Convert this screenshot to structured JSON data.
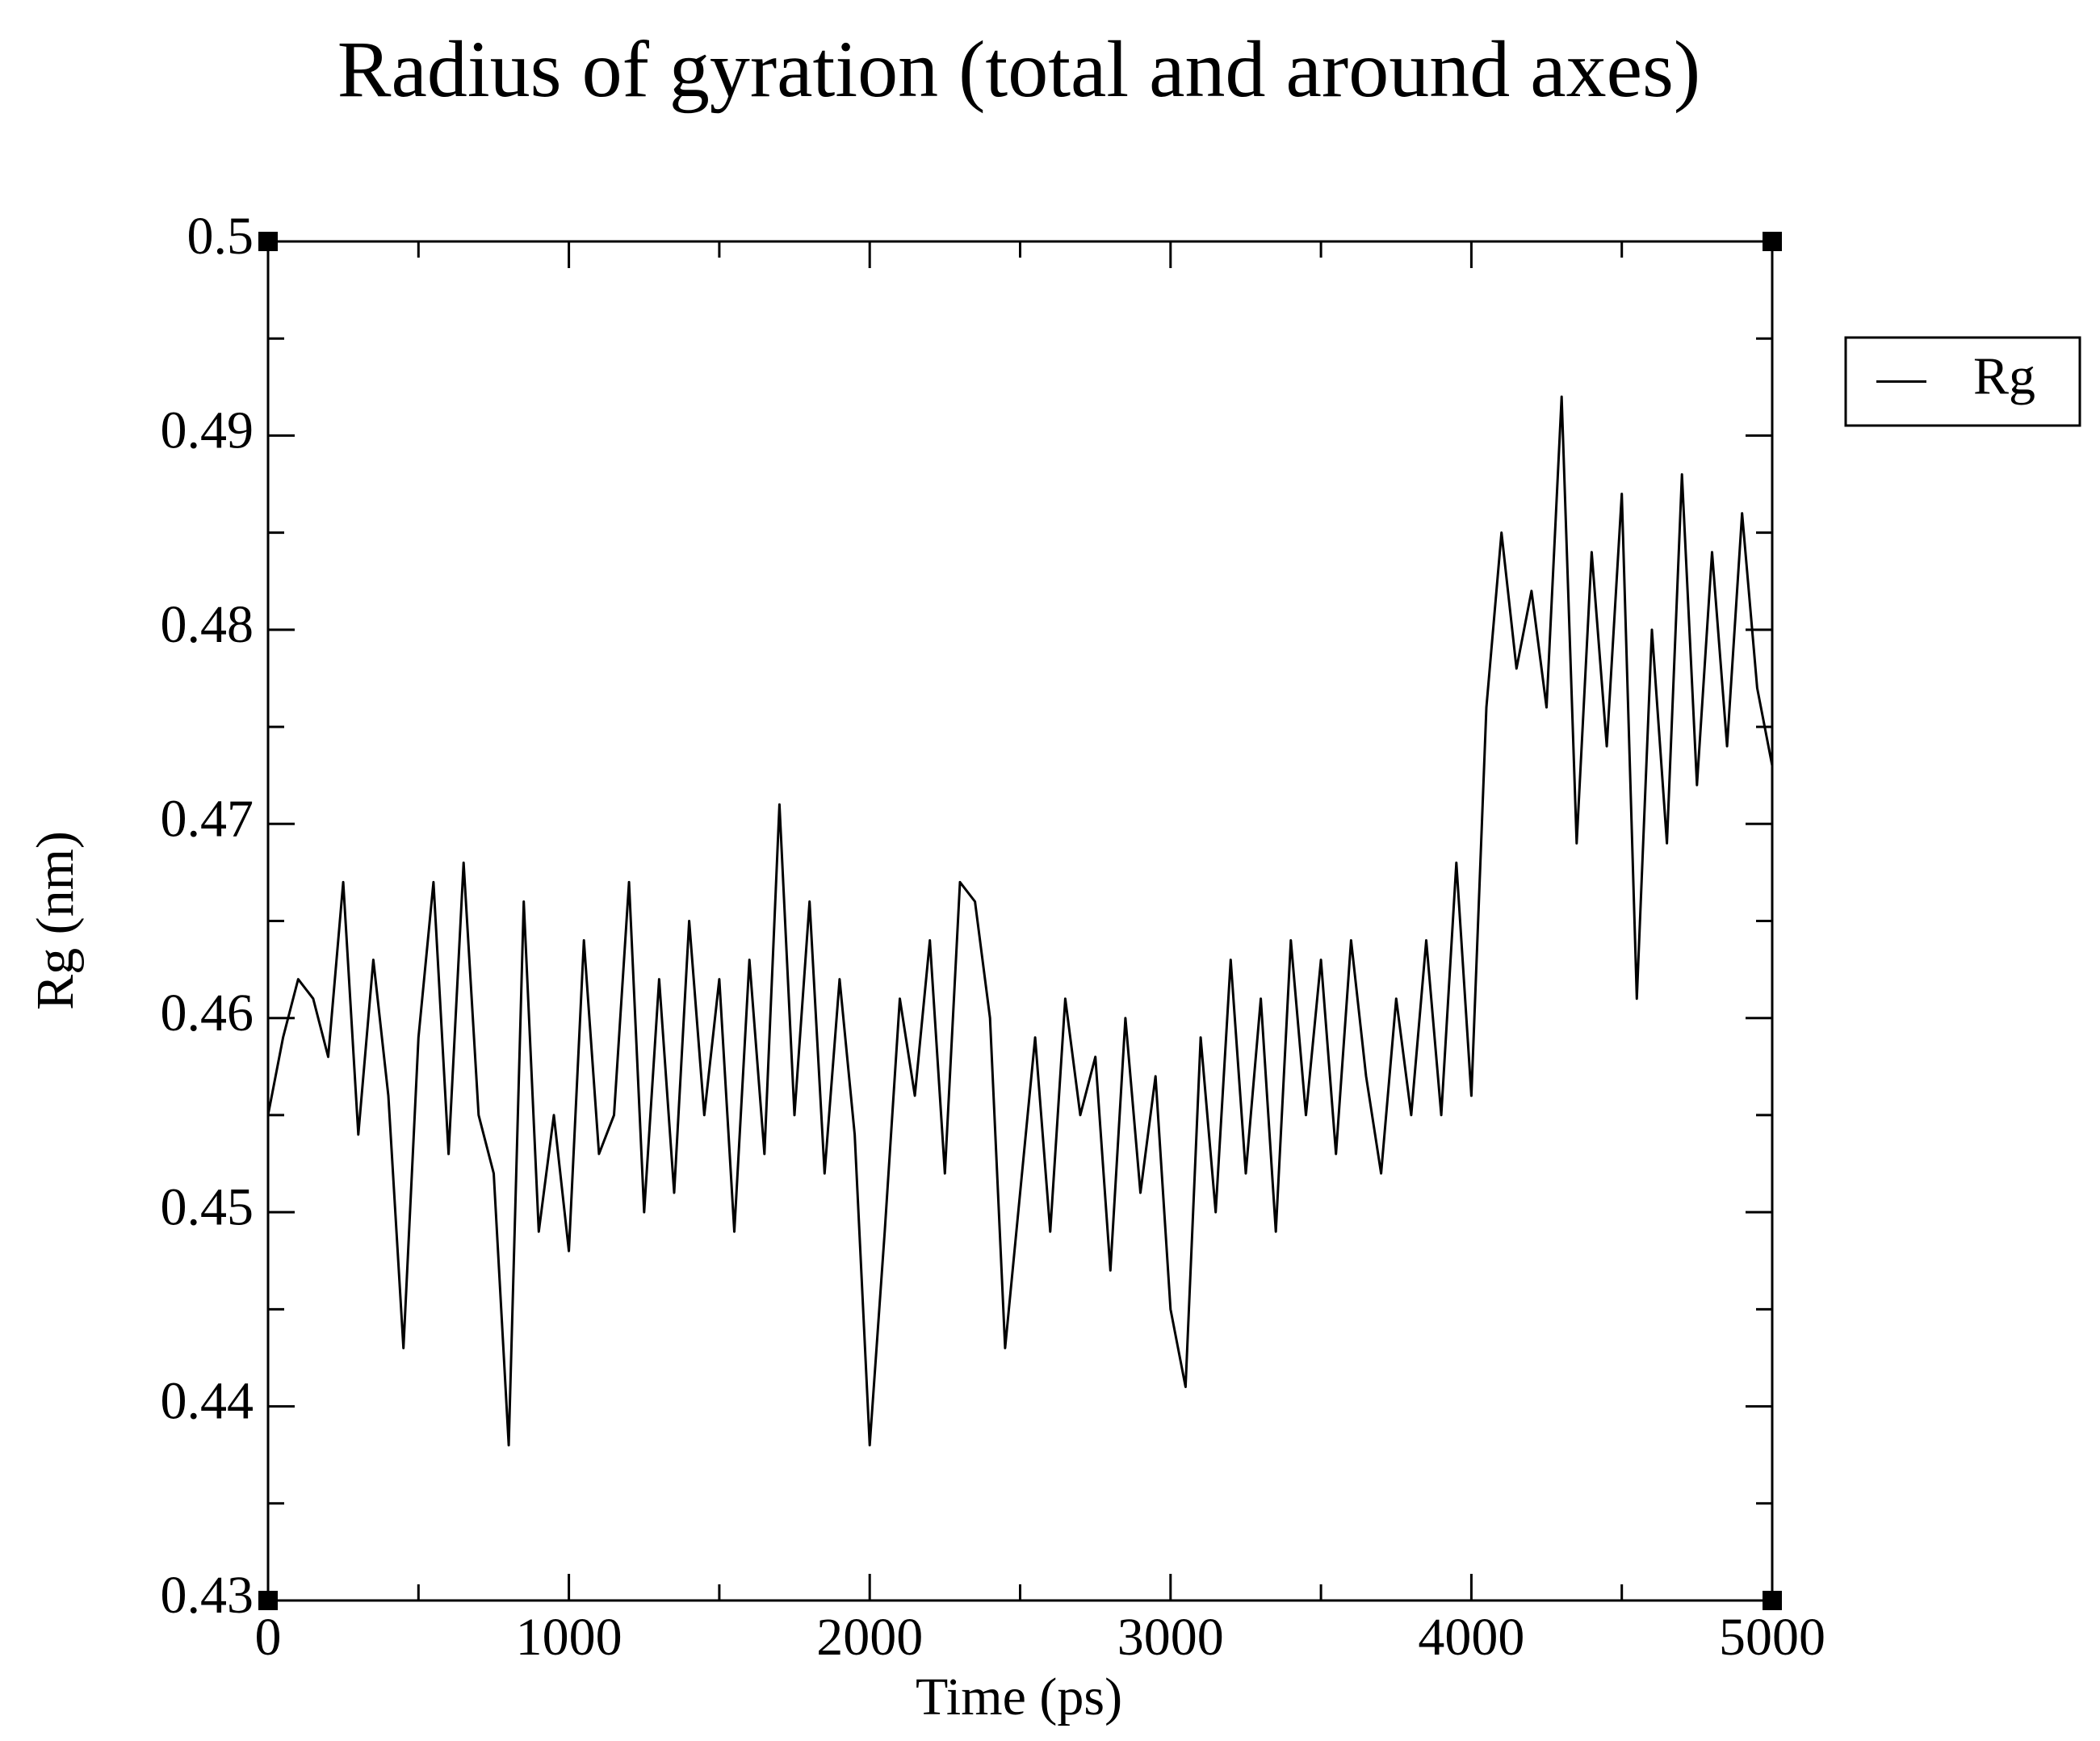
{
  "chart_data": {
    "type": "line",
    "title": "Radius of gyration (total and around axes)",
    "x_label": "Time (ps)",
    "y_label": "Rg (nm)",
    "x": [
      0,
      50,
      100,
      150,
      200,
      250,
      300,
      350,
      400,
      450,
      500,
      550,
      600,
      650,
      700,
      750,
      800,
      850,
      900,
      950,
      1000,
      1050,
      1100,
      1150,
      1200,
      1250,
      1300,
      1350,
      1400,
      1450,
      1500,
      1550,
      1600,
      1650,
      1700,
      1750,
      1800,
      1850,
      1900,
      1950,
      2000,
      2050,
      2100,
      2150,
      2200,
      2250,
      2300,
      2350,
      2400,
      2450,
      2500,
      2550,
      2600,
      2650,
      2700,
      2750,
      2800,
      2850,
      2900,
      2950,
      3000,
      3050,
      3100,
      3150,
      3200,
      3250,
      3300,
      3350,
      3400,
      3450,
      3500,
      3550,
      3600,
      3650,
      3700,
      3750,
      3800,
      3850,
      3900,
      3950,
      4000,
      4050,
      4100,
      4150,
      4200,
      4250,
      4300,
      4350,
      4400,
      4450,
      4500,
      4550,
      4600,
      4650,
      4700,
      4750,
      4800,
      4850,
      4900,
      4950,
      5000
    ],
    "series": [
      {
        "name": "Rg",
        "color": "#000000",
        "values": [
          0.455,
          0.459,
          0.462,
          0.461,
          0.458,
          0.467,
          0.454,
          0.463,
          0.456,
          0.443,
          0.459,
          0.467,
          0.453,
          0.468,
          0.455,
          0.452,
          0.438,
          0.466,
          0.449,
          0.455,
          0.448,
          0.464,
          0.453,
          0.455,
          0.467,
          0.45,
          0.462,
          0.451,
          0.465,
          0.455,
          0.462,
          0.449,
          0.463,
          0.453,
          0.471,
          0.455,
          0.466,
          0.452,
          0.462,
          0.454,
          0.438,
          0.449,
          0.461,
          0.456,
          0.464,
          0.452,
          0.467,
          0.466,
          0.46,
          0.443,
          0.451,
          0.459,
          0.449,
          0.461,
          0.455,
          0.458,
          0.447,
          0.46,
          0.451,
          0.457,
          0.445,
          0.441,
          0.459,
          0.45,
          0.463,
          0.452,
          0.461,
          0.449,
          0.464,
          0.455,
          0.463,
          0.453,
          0.464,
          0.457,
          0.452,
          0.461,
          0.455,
          0.464,
          0.455,
          0.468,
          0.456,
          0.476,
          0.485,
          0.478,
          0.482,
          0.476,
          0.492,
          0.469,
          0.484,
          0.474,
          0.487,
          0.461,
          0.48,
          0.469,
          0.488,
          0.472,
          0.484,
          0.474,
          0.486,
          0.477,
          0.473
        ]
      }
    ],
    "xlim": [
      0,
      5000
    ],
    "xticks": [
      0,
      1000,
      2000,
      3000,
      4000,
      5000
    ],
    "ylim": [
      0.43,
      0.5
    ],
    "yticks": [
      0.43,
      0.44,
      0.45,
      0.46,
      0.47,
      0.48,
      0.49,
      0.5
    ],
    "legend": "right",
    "grid": false
  }
}
